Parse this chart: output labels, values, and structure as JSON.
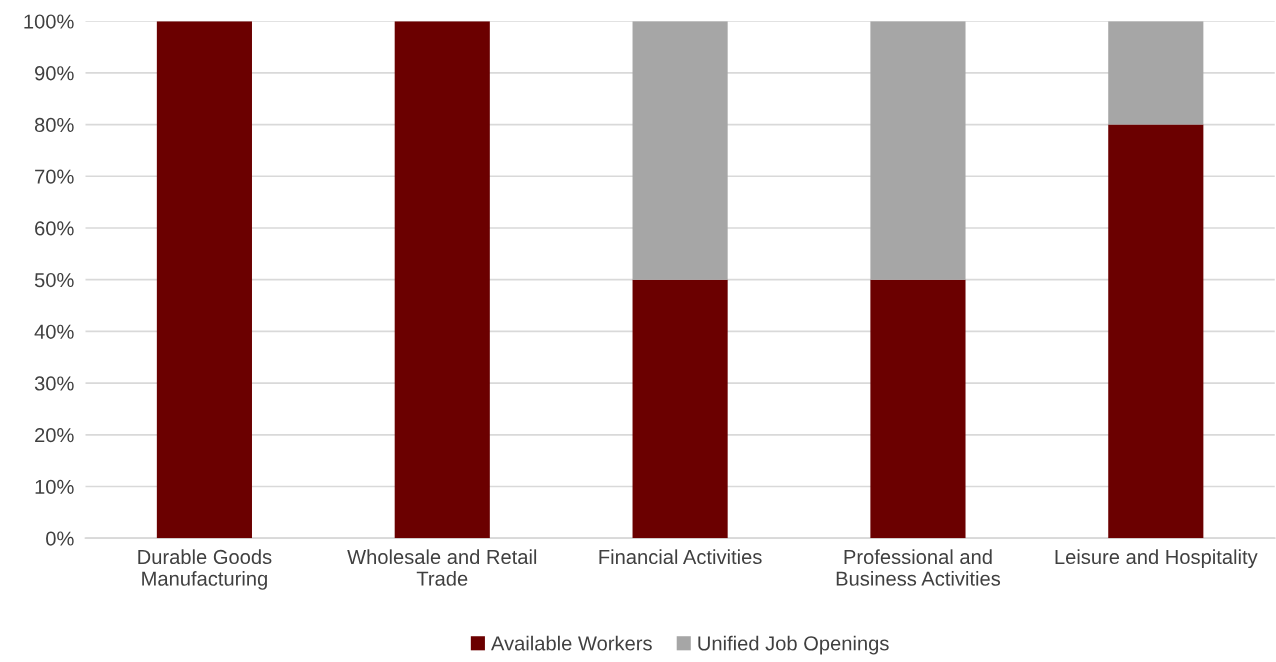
{
  "chart_data": {
    "type": "bar",
    "stacked": true,
    "categories": [
      "Durable Goods\nManufacturing",
      "Wholesale and Retail\nTrade",
      "Financial Activities",
      "Professional and\nBusiness Activities",
      "Leisure and Hospitality"
    ],
    "series": [
      {
        "name": "Available Workers",
        "color": "#6b0000",
        "values": [
          100,
          100,
          50,
          50,
          80
        ]
      },
      {
        "name": "Unified Job Openings",
        "color": "#a6a6a6",
        "values": [
          0,
          0,
          50,
          50,
          20
        ]
      }
    ],
    "ylim": [
      0,
      100
    ],
    "yticks": [
      {
        "value": 0,
        "label": "0%"
      },
      {
        "value": 10,
        "label": "10%"
      },
      {
        "value": 20,
        "label": "20%"
      },
      {
        "value": 30,
        "label": "30%"
      },
      {
        "value": 40,
        "label": "40%"
      },
      {
        "value": 50,
        "label": "50%"
      },
      {
        "value": 60,
        "label": "60%"
      },
      {
        "value": 70,
        "label": "70%"
      },
      {
        "value": 80,
        "label": "80%"
      },
      {
        "value": 90,
        "label": "90%"
      },
      {
        "value": 100,
        "label": "100%"
      }
    ],
    "grid": "y",
    "legend": "bottom"
  }
}
